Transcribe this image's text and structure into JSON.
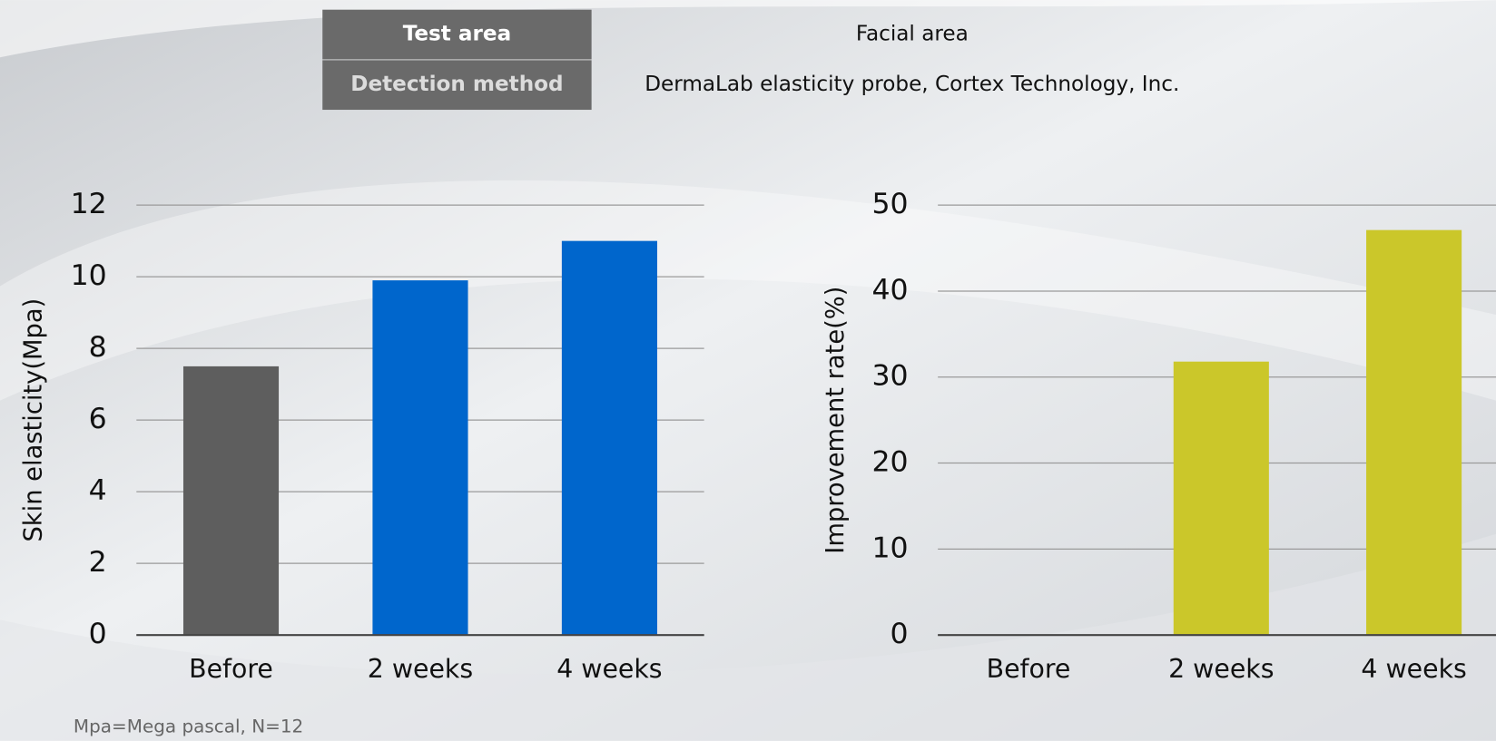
{
  "info_table": {
    "rows": [
      [
        "Test area",
        "Facial area"
      ],
      [
        "Detection method",
        "DermaLab elasticity probe, Cortex Technology, Inc."
      ]
    ]
  },
  "chart_data": [
    {
      "type": "bar",
      "y_label": "Skin elasticity(Mpa)",
      "categories": [
        "Before",
        "2 weeks",
        "4 weeks"
      ],
      "values": [
        7.5,
        9.9,
        11.0
      ],
      "colors": [
        "#5e5e5e",
        "#0066cc",
        "#0066cc"
      ],
      "ylim": [
        0,
        12
      ],
      "yticks": [
        0,
        2,
        4,
        6,
        8,
        10,
        12
      ],
      "grid": true
    },
    {
      "type": "bar",
      "y_label": "Improvement rate(%)",
      "categories": [
        "Before",
        "2 weeks",
        "4 weeks"
      ],
      "values": [
        0,
        31.8,
        47.1
      ],
      "colors": [
        "#cbc72a",
        "#cbc72a",
        "#cbc72a"
      ],
      "ylim": [
        0,
        50
      ],
      "yticks": [
        0,
        10,
        20,
        30,
        40,
        50
      ],
      "grid": true
    }
  ],
  "footnote": "Mpa=Mega pascal, N=12"
}
